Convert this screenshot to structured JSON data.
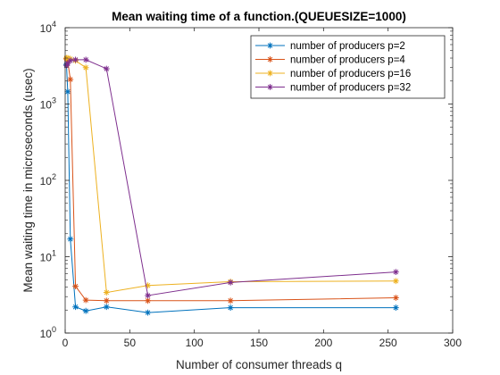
{
  "chart_data": {
    "type": "line",
    "title": "Mean waiting time of a function.(QUEUESIZE=1000)",
    "xlabel": "Number of consumer threads q",
    "ylabel": "Mean waiting time in microseconds (usec)",
    "xlim": [
      0,
      300
    ],
    "ylim": [
      1,
      10000
    ],
    "yscale": "log",
    "grid": false,
    "legend_position": "top-right",
    "x_ticks": [
      0,
      50,
      100,
      150,
      200,
      250,
      300
    ],
    "y_ticks": [
      {
        "value": 1,
        "base": "10",
        "exp": "0"
      },
      {
        "value": 10,
        "base": "10",
        "exp": "1"
      },
      {
        "value": 100,
        "base": "10",
        "exp": "2"
      },
      {
        "value": 1000,
        "base": "10",
        "exp": "3"
      },
      {
        "value": 10000,
        "base": "10",
        "exp": "4"
      }
    ],
    "series": [
      {
        "name": "number of producers p=2",
        "color": "#0072bd",
        "x": [
          1,
          2,
          4,
          8,
          16,
          32,
          64,
          128,
          256
        ],
        "y": [
          3300,
          1450,
          17,
          2.2,
          1.95,
          2.2,
          1.85,
          2.15,
          2.15
        ]
      },
      {
        "name": "number of producers p=4",
        "color": "#d95319",
        "x": [
          1,
          2,
          4,
          8,
          16,
          32,
          64,
          128,
          256
        ],
        "y": [
          3900,
          3600,
          2100,
          4.1,
          2.7,
          2.65,
          2.65,
          2.65,
          2.9
        ]
      },
      {
        "name": "number of producers p=16",
        "color": "#edb120",
        "x": [
          1,
          2,
          4,
          8,
          16,
          32,
          64,
          128,
          256
        ],
        "y": [
          4000,
          4000,
          3900,
          3700,
          3000,
          3.4,
          4.2,
          4.7,
          4.8
        ]
      },
      {
        "name": "number of producers p=32",
        "color": "#7e2f8e",
        "x": [
          1,
          2,
          4,
          8,
          16,
          32,
          64,
          128,
          256
        ],
        "y": [
          3200,
          3400,
          3700,
          3800,
          3800,
          2900,
          3.1,
          4.6,
          6.3
        ]
      }
    ]
  }
}
